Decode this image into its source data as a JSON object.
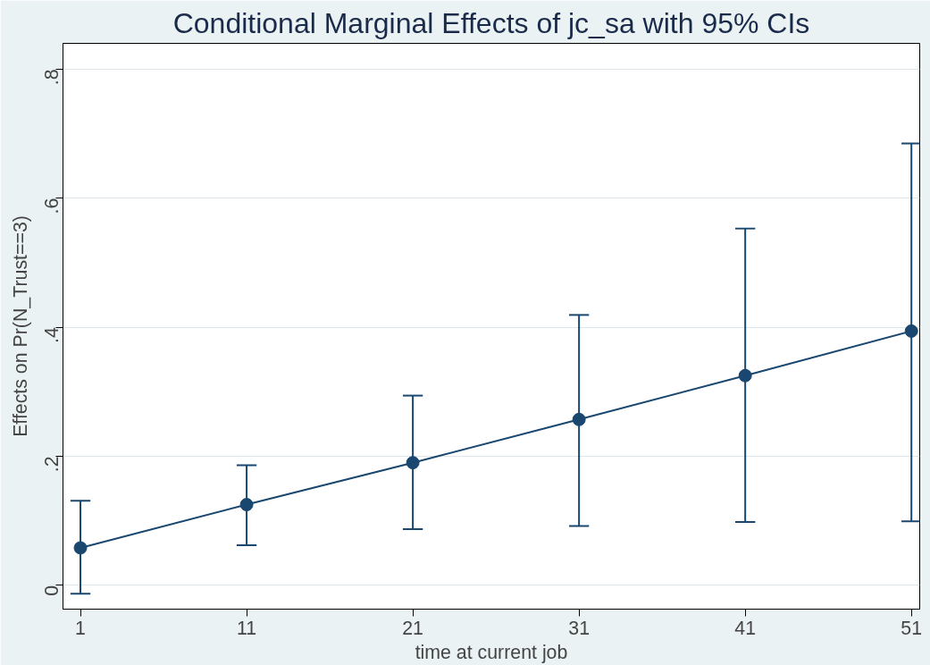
{
  "chart_data": {
    "type": "line",
    "title": "Conditional Marginal Effects of jc_sa with 95% CIs",
    "xlabel": "time at current job",
    "ylabel": "Effects on Pr(N_Trust==3)",
    "x": [
      1,
      11,
      21,
      31,
      41,
      51
    ],
    "series": [
      {
        "color": "#1a476f",
        "values": [
          0.058,
          0.125,
          0.19,
          0.257,
          0.325,
          0.394
        ],
        "errors": [
          [
            -0.013,
            0.131
          ],
          [
            0.062,
            0.186
          ],
          [
            0.087,
            0.294
          ],
          [
            0.092,
            0.419
          ],
          [
            0.098,
            0.553
          ],
          [
            0.099,
            0.685
          ]
        ]
      }
    ],
    "xlim": [
      -0.05,
      51.5
    ],
    "ylim": [
      -0.037,
      0.84
    ],
    "xticks": [
      1,
      11,
      21,
      31,
      41,
      51
    ],
    "yticks": [
      {
        "value": 0,
        "label": "0"
      },
      {
        "value": 0.2,
        "label": ".2"
      },
      {
        "value": 0.4,
        "label": ".4"
      },
      {
        "value": 0.6,
        "label": ".6"
      },
      {
        "value": 0.8,
        "label": ".8"
      }
    ],
    "grid": "y",
    "marker": "circle",
    "line_style": "solid"
  }
}
